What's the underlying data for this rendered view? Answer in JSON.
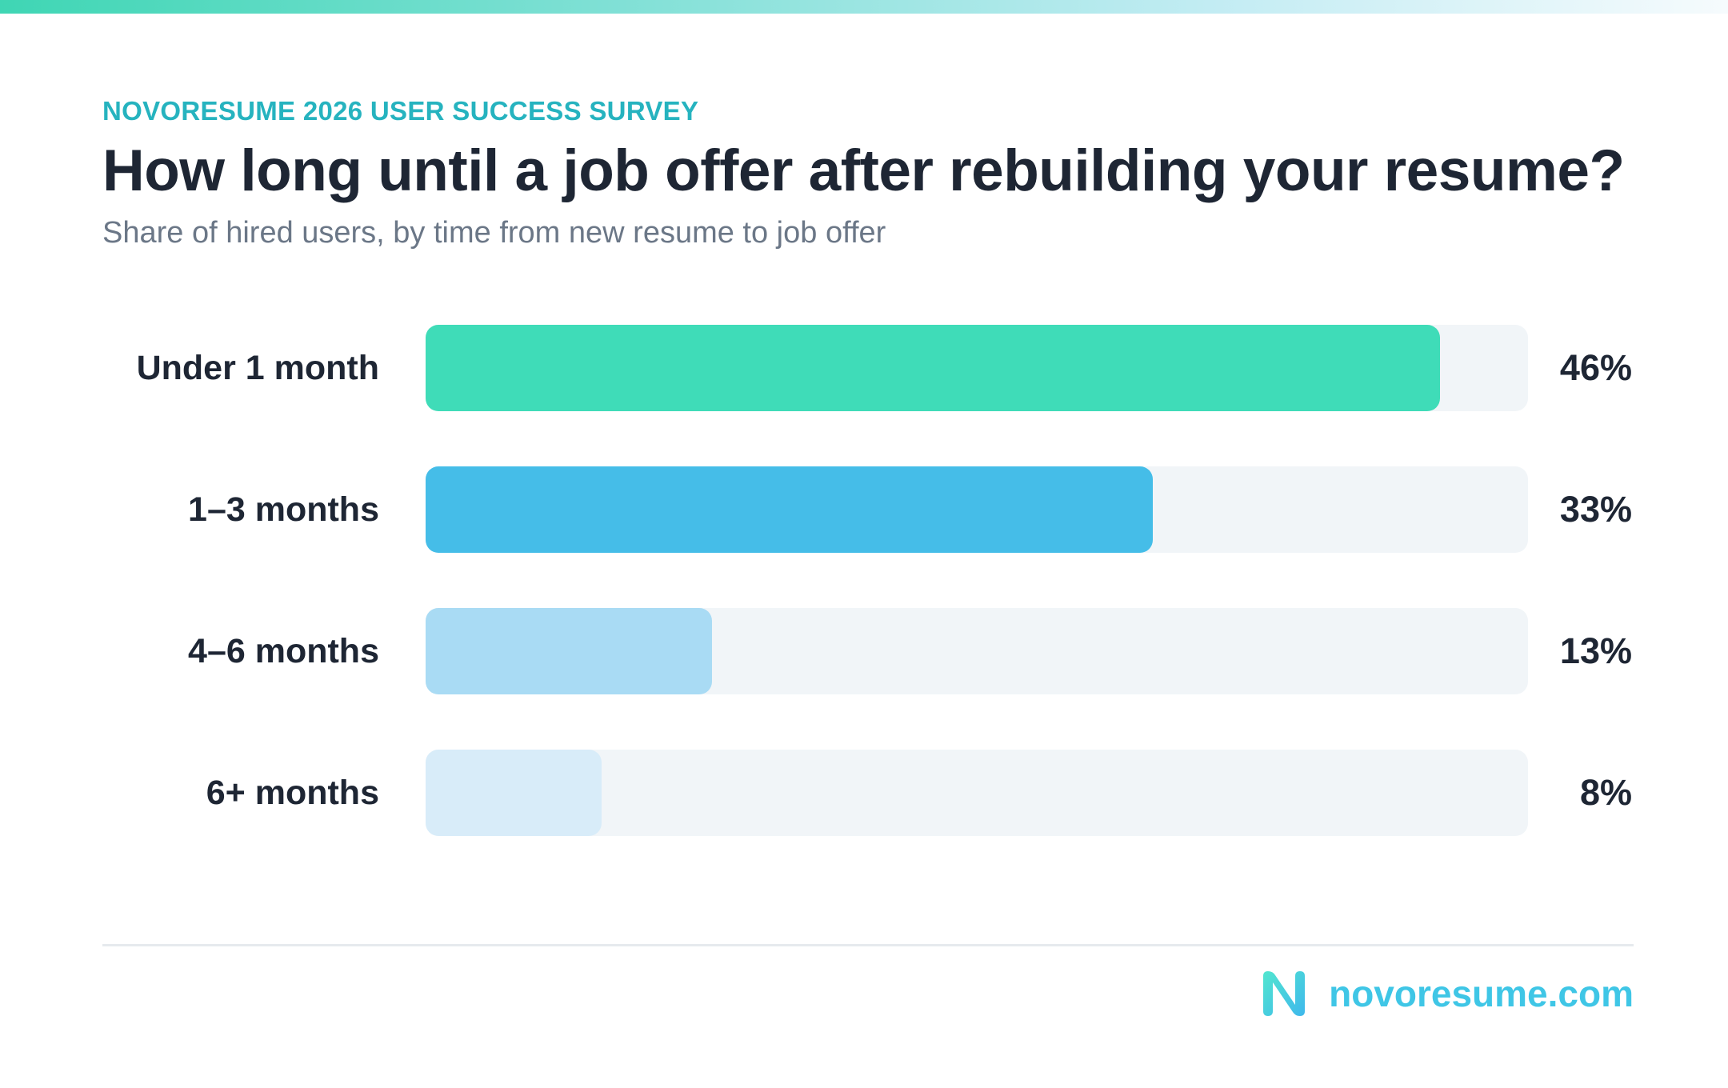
{
  "header": {
    "eyebrow": "NOVORESUME 2026 USER SUCCESS SURVEY",
    "title": "How long until a job offer after rebuilding your resume?",
    "subtitle": "Share of hired users, by time from new resume to job offer"
  },
  "footer": {
    "brand": "novoresume.com"
  },
  "colors": {
    "accent": "#26b3bf",
    "title": "#1e2634",
    "track": "#f1f5f8",
    "brand": "#3fc6e6"
  },
  "chart_data": {
    "type": "bar",
    "orientation": "horizontal",
    "categories": [
      "Under 1 month",
      "1–3 months",
      "4–6 months",
      "6+ months"
    ],
    "values": [
      46,
      33,
      13,
      8
    ],
    "value_labels": [
      "46%",
      "33%",
      "13%",
      "8%"
    ],
    "unit": "%",
    "xlim": [
      0,
      50
    ],
    "bar_colors": [
      "#3fdcb8",
      "#45bde8",
      "#a9dbf4",
      "#d8ecf9"
    ],
    "title": "How long until a job offer after rebuilding your resume?",
    "subtitle": "Share of hired users, by time from new resume to job offer",
    "grid": false,
    "legend": "none"
  }
}
